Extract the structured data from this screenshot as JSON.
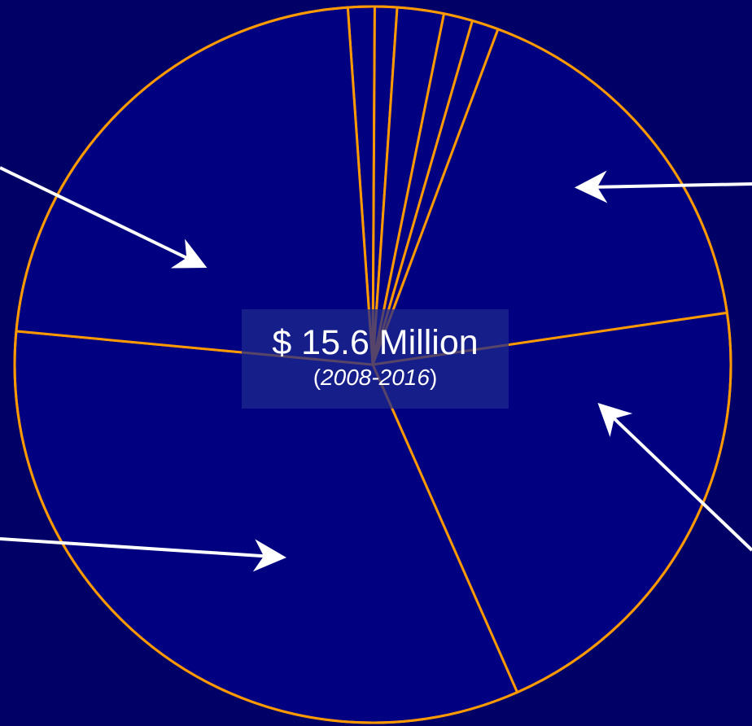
{
  "center_label": {
    "amount": "$ 15.6 Million",
    "period": "2008-2016",
    "paren_open": "(",
    "paren_close": ")"
  },
  "colors": {
    "background": "#000066",
    "slice_fill": "#000080",
    "slice_edge": "#FF9900",
    "arrow": "#FFFFFF",
    "label_text": "#FFFFFF"
  },
  "chart_data": {
    "type": "pie",
    "title": "",
    "slices": [
      {
        "value": 1.2
      },
      {
        "value": 1.0
      },
      {
        "value": 2.1
      },
      {
        "value": 1.3
      },
      {
        "value": 1.2
      },
      {
        "value": 17.0
      },
      {
        "value": 20.7
      },
      {
        "value": 33.1
      },
      {
        "value": 22.4
      }
    ],
    "value_unit": "percent",
    "start_angle_deg": -4,
    "direction": "clockwise",
    "legend": "none",
    "annotations": [
      {
        "target_slice": 5,
        "kind": "arrow",
        "from_side": "right"
      },
      {
        "target_slice": 6,
        "kind": "arrow",
        "from_side": "bottom-right"
      },
      {
        "target_slice": 7,
        "kind": "arrow",
        "from_side": "left"
      },
      {
        "target_slice": 8,
        "kind": "arrow",
        "from_side": "left"
      }
    ]
  }
}
